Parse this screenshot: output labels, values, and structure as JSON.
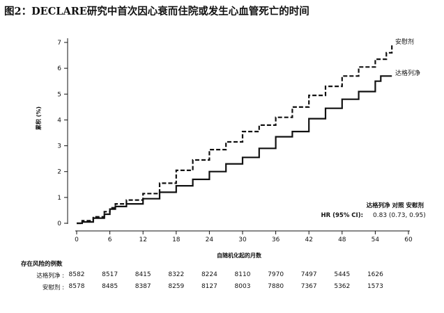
{
  "title": "图2：DECLARE研究中首次因心衰而住院或发生心血管死亡的时间",
  "chart_data": {
    "type": "line",
    "ylabel": "累积 (%)",
    "xlabel": "自随机化起的月数",
    "xlim": [
      0,
      60
    ],
    "ylim": [
      0,
      7
    ],
    "xticks": [
      0,
      6,
      12,
      18,
      24,
      30,
      36,
      42,
      48,
      54,
      60
    ],
    "yticks": [
      0,
      1,
      2,
      3,
      4,
      5,
      6,
      7
    ],
    "grid": false,
    "series": [
      {
        "name": "安慰剂",
        "style": "dashed",
        "x": [
          0,
          1,
          3,
          5,
          6,
          7,
          9,
          12,
          15,
          18,
          21,
          24,
          27,
          30,
          33,
          36,
          39,
          42,
          45,
          48,
          51,
          54,
          56,
          57
        ],
        "y": [
          0,
          0.1,
          0.25,
          0.45,
          0.6,
          0.75,
          0.9,
          1.15,
          1.55,
          2.05,
          2.45,
          2.85,
          3.15,
          3.55,
          3.8,
          4.1,
          4.5,
          4.95,
          5.3,
          5.7,
          6.05,
          6.35,
          6.6,
          6.95
        ],
        "color": "#111111"
      },
      {
        "name": "达格列净",
        "style": "solid",
        "x": [
          0,
          1,
          3,
          5,
          6,
          7,
          9,
          12,
          15,
          18,
          21,
          24,
          27,
          30,
          33,
          36,
          39,
          42,
          45,
          48,
          51,
          54,
          55,
          57
        ],
        "y": [
          0,
          0.05,
          0.2,
          0.35,
          0.55,
          0.65,
          0.75,
          0.95,
          1.2,
          1.45,
          1.7,
          2.0,
          2.3,
          2.55,
          2.9,
          3.35,
          3.55,
          4.05,
          4.45,
          4.8,
          5.1,
          5.5,
          5.7,
          5.7
        ],
        "color": "#111111"
      }
    ],
    "hr_table": {
      "header": "达格列净  对照  安慰剂",
      "row_label": "HR (95% CI):",
      "row_value": "0.83 (0.73, 0.95)"
    }
  },
  "risk_table": {
    "title": "存在风险的例数",
    "times": [
      0,
      6,
      12,
      18,
      24,
      30,
      36,
      42,
      48,
      54
    ],
    "rows": [
      {
        "label": "达格列净 :",
        "values": [
          "8582",
          "8517",
          "8415",
          "8322",
          "8224",
          "8110",
          "7970",
          "7497",
          "5445",
          "1626"
        ]
      },
      {
        "label": "安慰剂 :",
        "values": [
          "8578",
          "8485",
          "8387",
          "8259",
          "8127",
          "8003",
          "7880",
          "7367",
          "5362",
          "1573"
        ]
      }
    ]
  }
}
